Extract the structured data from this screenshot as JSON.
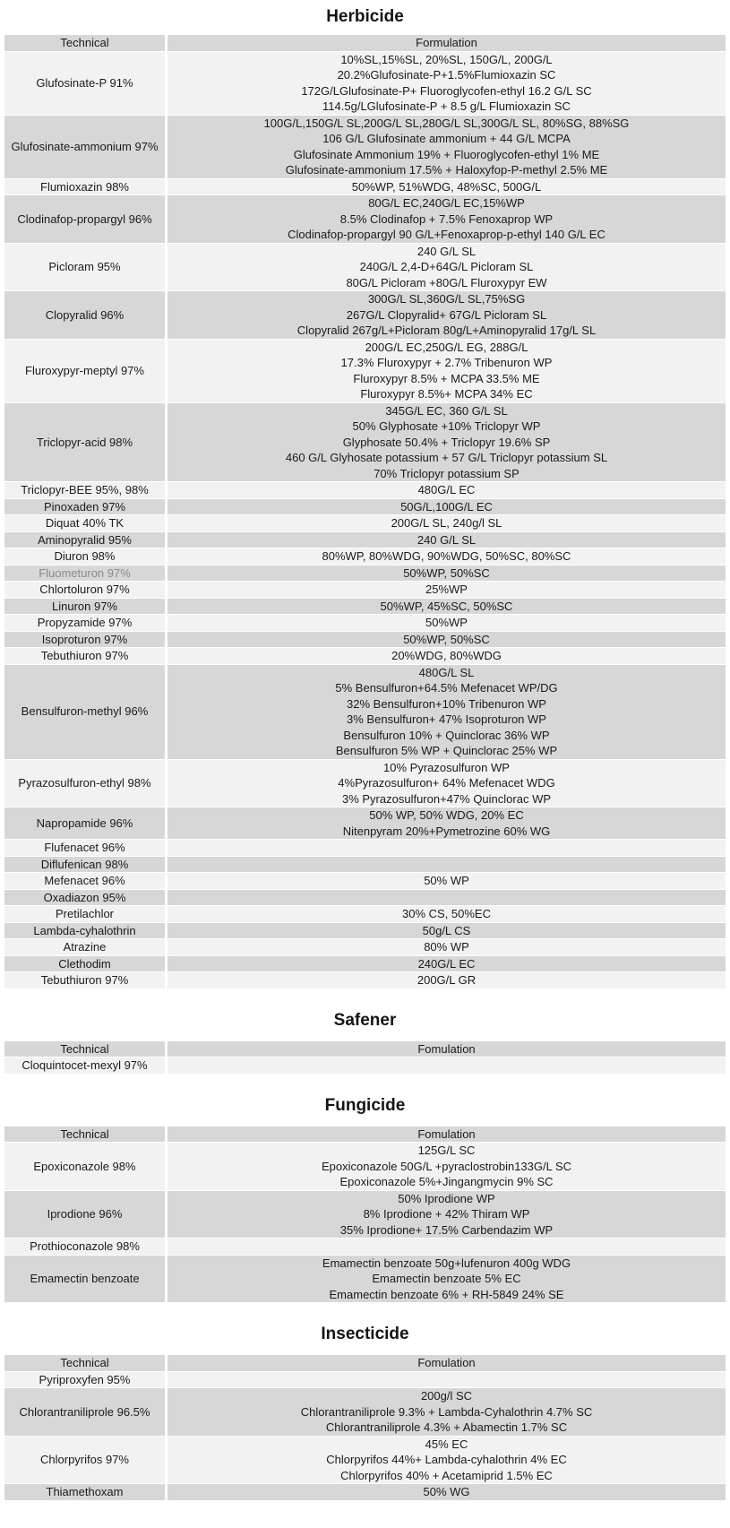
{
  "colors": {
    "page_background": "#ffffff",
    "header_row_bg": "#d7d7d7",
    "row_dark_bg": "#d7d7d7",
    "row_light_bg": "#f2f2f2",
    "text": "#1b1b1b",
    "muted_text": "#8b8b8b"
  },
  "sections": [
    {
      "title": "Herbicide",
      "columns": {
        "technical": "Technical",
        "formulation": "Formulation"
      },
      "rows": [
        {
          "technical": "Glufosinate-P 91%",
          "formulations": [
            "10%SL,15%SL, 20%SL, 150G/L, 200G/L",
            "20.2%Glufosinate-P+1.5%Flumioxazin SC",
            "172G/LGlufosinate-P+ Fluoroglycofen-ethyl 16.2 G/L SC",
            "114.5g/LGlufosinate-P + 8.5 g/L Flumioxazin SC"
          ]
        },
        {
          "technical": "Glufosinate-ammonium 97%",
          "formulations": [
            "100G/L,150G/L SL,200G/L SL,280G/L SL,300G/L SL, 80%SG, 88%SG",
            "106 G/L Glufosinate ammonium + 44 G/L MCPA",
            "Glufosinate Ammonium 19% + Fluoroglycofen-ethyl 1% ME",
            "Glufosinate-ammonium 17.5% + Haloxyfop-P-methyl 2.5% ME"
          ]
        },
        {
          "technical": "Flumioxazin 98%",
          "formulations": [
            "50%WP, 51%WDG, 48%SC, 500G/L"
          ]
        },
        {
          "technical": "Clodinafop-propargyl 96%",
          "formulations": [
            "80G/L EC,240G/L EC,15%WP",
            "8.5% Clodinafop + 7.5% Fenoxaprop WP",
            "Clodinafop-propargyl 90 G/L+Fenoxaprop-p-ethyl 140 G/L EC"
          ]
        },
        {
          "technical": "Picloram 95%",
          "formulations": [
            "240 G/L SL",
            "240G/L 2,4-D+64G/L Picloram SL",
            "80G/L Picloram +80G/L Fluroxypyr EW"
          ]
        },
        {
          "technical": "Clopyralid 96%",
          "formulations": [
            "300G/L SL,360G/L SL,75%SG",
            "267G/L Clopyralid+ 67G/L Picloram SL",
            "Clopyralid 267g/L+Picloram 80g/L+Aminopyralid 17g/L SL"
          ]
        },
        {
          "technical": "Fluroxypyr-meptyl 97%",
          "formulations": [
            "200G/L EC,250G/L EG, 288G/L",
            "17.3% Fluroxypyr + 2.7% Tribenuron WP",
            "Fluroxypyr 8.5% + MCPA 33.5%  ME",
            "Fluroxypyr 8.5%+ MCPA 34% EC"
          ]
        },
        {
          "technical": "Triclopyr-acid 98%",
          "formulations": [
            "345G/L EC, 360 G/L SL",
            "50% Glyphosate +10% Triclopyr WP",
            "Glyphosate 50.4% + Triclopyr 19.6% SP",
            "460 G/L Glyhosate potassium + 57 G/L Triclopyr potassium SL",
            "70% Triclopyr potassium SP"
          ]
        },
        {
          "technical": "Triclopyr-BEE 95%, 98%",
          "formulations": [
            "480G/L EC"
          ]
        },
        {
          "technical": "Pinoxaden 97%",
          "formulations": [
            "50G/L,100G/L EC"
          ]
        },
        {
          "technical": "Diquat 40% TK",
          "formulations": [
            "200G/L SL, 240g/l SL"
          ]
        },
        {
          "technical": "Aminopyralid 95%",
          "formulations": [
            "240 G/L SL"
          ]
        },
        {
          "technical": "Diuron 98%",
          "formulations": [
            "80%WP, 80%WDG, 90%WDG, 50%SC, 80%SC"
          ]
        },
        {
          "technical": "Fluometuron 97%",
          "muted": true,
          "formulations": [
            "50%WP, 50%SC"
          ]
        },
        {
          "technical": "Chlortoluron 97%",
          "formulations": [
            "25%WP"
          ]
        },
        {
          "technical": "Linuron 97%",
          "formulations": [
            "50%WP, 45%SC, 50%SC"
          ]
        },
        {
          "technical": "Propyzamide 97%",
          "formulations": [
            "50%WP"
          ]
        },
        {
          "technical": "Isoproturon 97%",
          "formulations": [
            "50%WP, 50%SC"
          ]
        },
        {
          "technical": "Tebuthiuron 97%",
          "formulations": [
            "20%WDG, 80%WDG"
          ]
        },
        {
          "technical": "Bensulfuron-methyl 96%",
          "formulations": [
            "480G/L SL",
            "5% Bensulfuron+64.5% Mefenacet WP/DG",
            "32% Bensulfuron+10% Tribenuron WP",
            "3% Bensulfuron+ 47% Isoproturon WP",
            "Bensulfuron 10% + Quinclorac 36% WP",
            "Bensulfuron 5% WP + Quinclorac 25% WP"
          ]
        },
        {
          "technical": "Pyrazosulfuron-ethyl 98%",
          "formulations": [
            "10% Pyrazosulfuron WP",
            "4%Pyrazosulfuron+ 64% Mefenacet WDG",
            "3% Pyrazosulfuron+47% Quinclorac WP"
          ]
        },
        {
          "technical": "Napropamide 96%",
          "formulations": [
            "50% WP, 50% WDG, 20% EC",
            "Nitenpyram 20%+Pymetrozine 60% WG"
          ]
        },
        {
          "technical": "Flufenacet 96%",
          "formulations": []
        },
        {
          "technical": "Diflufenican 98%",
          "formulations": []
        },
        {
          "technical": "Mefenacet 96%",
          "formulations": [
            "50% WP"
          ]
        },
        {
          "technical": "Oxadiazon 95%",
          "formulations": []
        },
        {
          "technical": "Pretilachlor",
          "formulations": [
            "30% CS, 50%EC"
          ]
        },
        {
          "technical": "Lambda-cyhalothrin",
          "formulations": [
            "50g/L CS"
          ]
        },
        {
          "technical": "Atrazine",
          "formulations": [
            "80% WP"
          ]
        },
        {
          "technical": "Clethodim",
          "formulations": [
            "240G/L EC"
          ]
        },
        {
          "technical": "Tebuthiuron 97%",
          "formulations": [
            "200G/L GR"
          ]
        }
      ]
    },
    {
      "title": "Safener",
      "columns": {
        "technical": "Technical",
        "formulation": "Fomulation"
      },
      "rows": [
        {
          "technical": "Cloquintocet-mexyl 97%",
          "formulations": []
        }
      ]
    },
    {
      "title": "Fungicide",
      "columns": {
        "technical": "Technical",
        "formulation": "Fomulation"
      },
      "rows": [
        {
          "technical": "Epoxiconazole 98%",
          "formulations": [
            "125G/L SC",
            "Epoxiconazole 50G/L +pyraclostrobin133G/L SC",
            "Epoxiconazole 5%+Jingangmycin 9% SC"
          ]
        },
        {
          "technical": "Iprodione 96%",
          "formulations": [
            "50% Iprodione WP",
            "8% Iprodione + 42% Thiram WP",
            "35% Iprodione+ 17.5% Carbendazim WP"
          ]
        },
        {
          "technical": "Prothioconazole 98%",
          "formulations": []
        },
        {
          "technical": "Emamectin benzoate",
          "formulations": [
            "Emamectin benzoate 50g+lufenuron 400g WDG",
            "Emamectin benzoate 5% EC",
            "Emamectin benzoate 6% + RH-5849 24% SE"
          ]
        }
      ]
    },
    {
      "title": "Insecticide",
      "columns": {
        "technical": "Technical",
        "formulation": "Fomulation"
      },
      "rows": [
        {
          "technical": "Pyriproxyfen 95%",
          "formulations": []
        },
        {
          "technical": "Chlorantraniliprole 96.5%",
          "formulations": [
            "200g/l SC",
            "Chlorantraniliprole 9.3% + Lambda-Cyhalothrin 4.7% SC",
            "Chlorantraniliprole 4.3% + Abamectin 1.7% SC"
          ]
        },
        {
          "technical": "Chlorpyrifos 97%",
          "formulations": [
            "45% EC",
            "Chlorpyrifos 44%+ Lambda-cyhalothrin 4%  EC",
            "Chlorpyrifos 40% + Acetamiprid 1.5% EC"
          ]
        },
        {
          "technical": "Thiamethoxam",
          "formulations": [
            "50% WG"
          ]
        }
      ]
    }
  ]
}
